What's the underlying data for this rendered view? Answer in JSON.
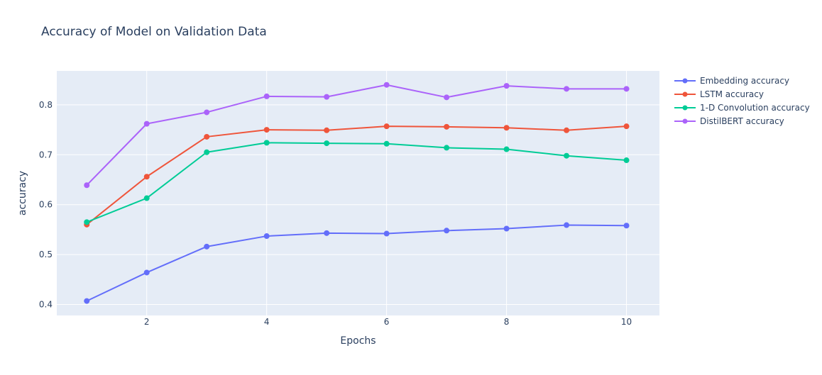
{
  "chart_data": {
    "type": "line",
    "title": "Accuracy of Model on Validation Data",
    "xlabel": "Epochs",
    "ylabel": "accuracy",
    "x": [
      1,
      2,
      3,
      4,
      5,
      6,
      7,
      8,
      9,
      10
    ],
    "xlim": [
      0.5,
      10.55
    ],
    "ylim": [
      0.378,
      0.868
    ],
    "x_ticks": [
      2,
      4,
      6,
      8,
      10
    ],
    "y_ticks": [
      0.4,
      0.5,
      0.6,
      0.7,
      0.8
    ],
    "x_tick_labels": [
      "2",
      "4",
      "6",
      "8",
      "10"
    ],
    "y_tick_labels": [
      "0.4",
      "0.5",
      "0.6",
      "0.7",
      "0.8"
    ],
    "grid": true,
    "legend_position": "top-right, outside plot",
    "plot_background": "#E5ECF6",
    "grid_color": "#FFFFFF",
    "series": [
      {
        "name": "Embedding accuracy",
        "color": "#636EFA",
        "values": [
          0.407,
          0.464,
          0.516,
          0.537,
          0.543,
          0.542,
          0.548,
          0.552,
          0.559,
          0.558
        ]
      },
      {
        "name": "LSTM accuracy",
        "color": "#EF553B",
        "values": [
          0.56,
          0.656,
          0.736,
          0.75,
          0.749,
          0.757,
          0.756,
          0.754,
          0.749,
          0.757
        ]
      },
      {
        "name": "1-D Convolution accuracy",
        "color": "#00CC96",
        "values": [
          0.565,
          0.613,
          0.705,
          0.724,
          0.723,
          0.722,
          0.714,
          0.711,
          0.698,
          0.689
        ]
      },
      {
        "name": "DistilBERT accuracy",
        "color": "#AB63FA",
        "values": [
          0.639,
          0.762,
          0.785,
          0.817,
          0.816,
          0.84,
          0.815,
          0.838,
          0.832,
          0.832
        ]
      }
    ]
  }
}
